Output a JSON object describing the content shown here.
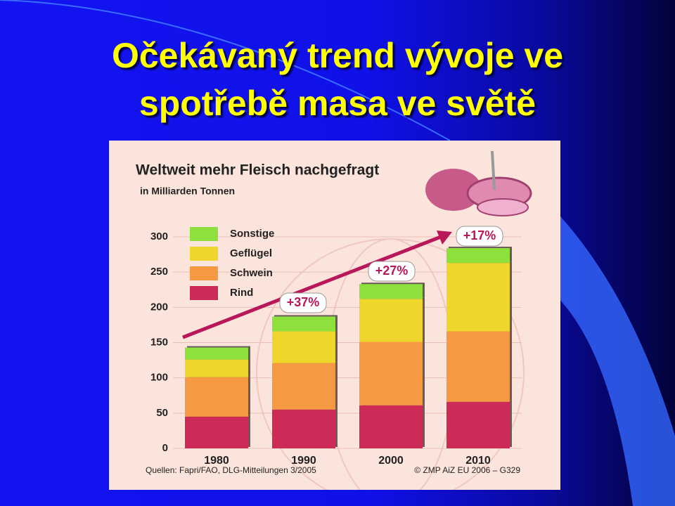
{
  "slide": {
    "title_lines": [
      "Očekávaný trend vývoje ve",
      "spotřebě masa ve světě"
    ]
  },
  "chart_data": {
    "type": "stacked-bar",
    "title": "Weltweit mehr Fleisch nachgefragt",
    "subtitle": "in Milliarden Tonnen",
    "categories": [
      "1980",
      "1990",
      "2000",
      "2010"
    ],
    "series": [
      {
        "name": "Rind",
        "color": "#cc2b58",
        "values": [
          45,
          55,
          61,
          66
        ]
      },
      {
        "name": "Schwein",
        "color": "#f59a42",
        "values": [
          56,
          66,
          90,
          100
        ]
      },
      {
        "name": "Geflügel",
        "color": "#efd62c",
        "values": [
          25,
          45,
          61,
          97
        ]
      },
      {
        "name": "Sonstige",
        "color": "#8ee03c",
        "values": [
          17,
          21,
          21,
          21
        ]
      }
    ],
    "ylim": [
      0,
      300
    ],
    "yticks": [
      0,
      50,
      100,
      150,
      200,
      250,
      300
    ],
    "grid": true,
    "annotations": [
      "+37%",
      "+27%",
      "+17%"
    ],
    "sources": "Quellen: Fapri/FAO, DLG-Mitteilungen 3/2005",
    "copyright": "© ZMP AiZ EU 2006 – G329"
  }
}
